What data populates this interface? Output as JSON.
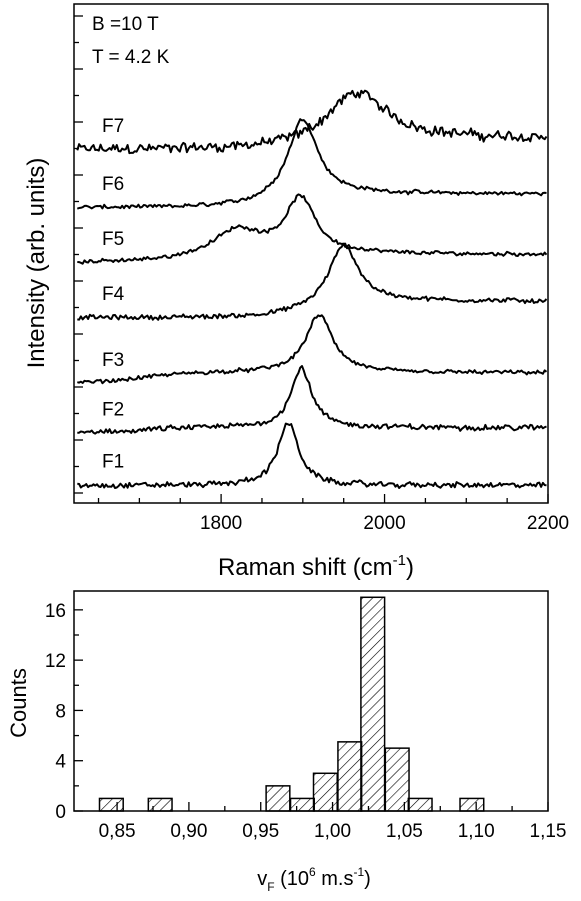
{
  "chart_data": [
    {
      "type": "line",
      "xlabel": "Raman shift (cm",
      "xlabel_sup": "-1",
      "xlabel_end": ")",
      "ylabel": "Intensity (arb. units)",
      "xlim": [
        1620,
        2200
      ],
      "xticks": [
        1800,
        2000,
        2200
      ],
      "annotations": [
        "B =10 T",
        "T = 4.2 K"
      ],
      "series": [
        {
          "name": "F7",
          "baseline": 7.0,
          "noise": 0.13,
          "peaks": [
            {
              "center": 1965,
              "amp": 0.9,
              "width": 45
            }
          ],
          "step": {
            "at": 1940,
            "delta": 0.2
          }
        },
        {
          "name": "F6",
          "baseline": 5.95,
          "noise": 0.05,
          "peaks": [
            {
              "center": 1900,
              "amp": 1.45,
              "width": 22
            }
          ],
          "step": {
            "at": 1880,
            "delta": 0.25
          }
        },
        {
          "name": "F5",
          "baseline": 4.95,
          "noise": 0.05,
          "peaks": [
            {
              "center": 1897,
              "amp": 1.0,
              "width": 22
            },
            {
              "center": 1820,
              "amp": 0.45,
              "width": 35
            }
          ],
          "step": {
            "at": 1770,
            "delta": 0.15
          }
        },
        {
          "name": "F4",
          "baseline": 3.95,
          "noise": 0.06,
          "peaks": [
            {
              "center": 1950,
              "amp": 1.1,
              "width": 22
            }
          ],
          "step": {
            "at": 1920,
            "delta": 0.3
          }
        },
        {
          "name": "F3",
          "baseline": 2.75,
          "noise": 0.05,
          "peaks": [
            {
              "center": 1920,
              "amp": 1.05,
              "width": 20
            }
          ],
          "step": {
            "at": 1700,
            "delta": 0.2
          }
        },
        {
          "name": "F2",
          "baseline": 1.85,
          "noise": 0.07,
          "peaks": [
            {
              "center": 1898,
              "amp": 1.1,
              "width": 15
            }
          ],
          "step": {
            "at": 1700,
            "delta": 0.1
          }
        },
        {
          "name": "F1",
          "baseline": 0.9,
          "noise": 0.07,
          "peaks": [
            {
              "center": 1882,
              "amp": 1.15,
              "width": 15
            }
          ],
          "step": {
            "at": 1700,
            "delta": 0.0
          }
        }
      ]
    },
    {
      "type": "bar",
      "xlabel": "v",
      "xlabel_sub": "F",
      "xlabel_rest": " (10",
      "xlabel_sup": "6",
      "xlabel_end": " m.s",
      "xlabel_sup2": "-1",
      "xlabel_close": ")",
      "ylabel": "Counts",
      "xlim": [
        0.82,
        1.15
      ],
      "ylim": [
        0,
        17.5
      ],
      "xticks": [
        "0,85",
        "0,90",
        "0,95",
        "1,00",
        "1,05",
        "1,10",
        "1,15"
      ],
      "xtick_values": [
        0.85,
        0.9,
        0.95,
        1.0,
        1.05,
        1.1,
        1.15
      ],
      "yticks": [
        0,
        4,
        8,
        12,
        16
      ],
      "bin_width": 0.0165,
      "bins": [
        {
          "center": 0.846,
          "count": 1
        },
        {
          "center": 0.88,
          "count": 1
        },
        {
          "center": 0.962,
          "count": 2
        },
        {
          "center": 0.979,
          "count": 1
        },
        {
          "center": 0.995,
          "count": 3
        },
        {
          "center": 1.012,
          "count": 5.5
        },
        {
          "center": 1.028,
          "count": 17
        },
        {
          "center": 1.045,
          "count": 5
        },
        {
          "center": 1.061,
          "count": 1
        },
        {
          "center": 1.097,
          "count": 1
        }
      ]
    }
  ]
}
